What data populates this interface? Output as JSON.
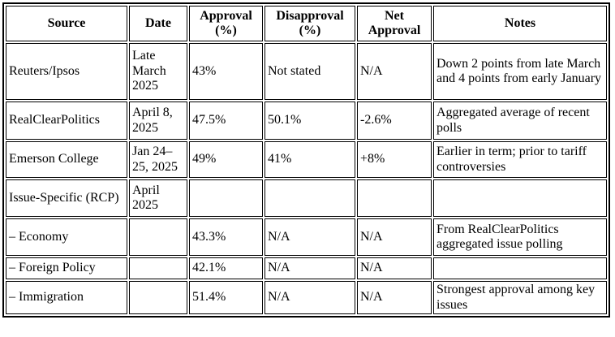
{
  "table": {
    "columns": [
      "Source",
      "Date",
      "Approval (%)",
      "Disapproval (%)",
      "Net Approval",
      "Notes"
    ],
    "rows": [
      {
        "source": "Reuters/Ipsos",
        "date": "Late March 2025",
        "approval": "43%",
        "disapproval": "Not stated",
        "net": "N/A",
        "notes": "Down 2 points from late March and 4 points from early January"
      },
      {
        "source": "RealClearPolitics",
        "date": "April 8, 2025",
        "approval": "47.5%",
        "disapproval": "50.1%",
        "net": "-2.6%",
        "notes": "Aggregated average of recent polls"
      },
      {
        "source": "Emerson College",
        "date": "Jan 24–25, 2025",
        "approval": "49%",
        "disapproval": "41%",
        "net": "+8%",
        "notes": "Earlier in term; prior to tariff controversies"
      },
      {
        "source": "Issue-Specific (RCP)",
        "date": "April 2025",
        "approval": "",
        "disapproval": "",
        "net": "",
        "notes": ""
      },
      {
        "source": "– Economy",
        "date": "",
        "approval": "43.3%",
        "disapproval": "N/A",
        "net": "N/A",
        "notes": "From RealClearPolitics aggregated issue polling"
      },
      {
        "source": "– Foreign Policy",
        "date": "",
        "approval": "42.1%",
        "disapproval": "N/A",
        "net": "N/A",
        "notes": ""
      },
      {
        "source": "– Immigration",
        "date": "",
        "approval": "51.4%",
        "disapproval": "N/A",
        "net": "N/A",
        "notes": "Strongest approval among key issues"
      }
    ]
  }
}
